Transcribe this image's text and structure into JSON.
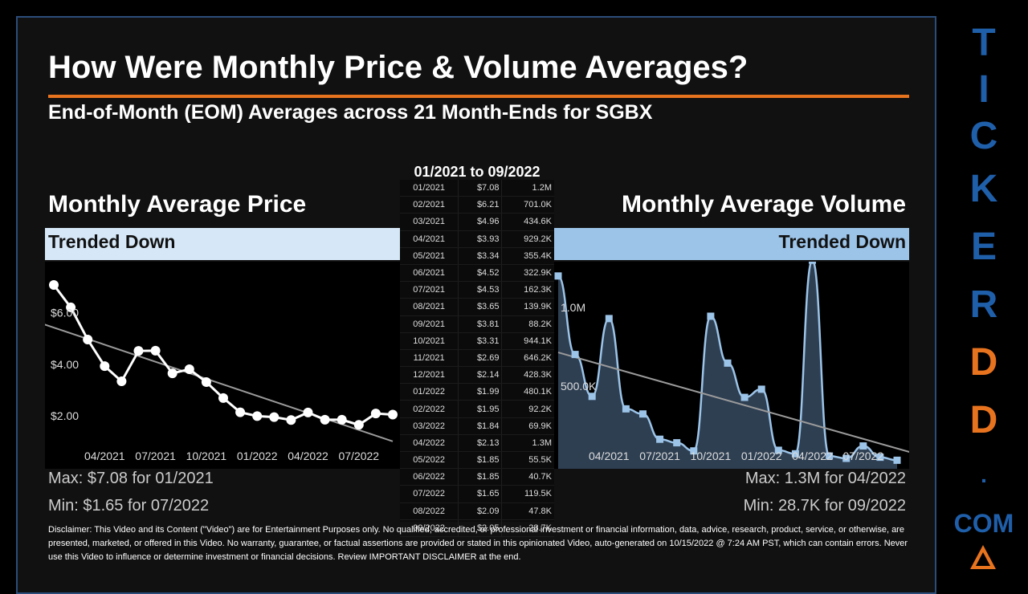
{
  "header": {
    "title": "How Were Monthly Price & Volume Averages?",
    "subtitle": "End-of-Month (EOM) Averages across 21 Month-Ends for SGBX",
    "range": "01/2021 to 09/2022"
  },
  "price_panel": {
    "title": "Monthly Average Price",
    "trend": "Trended Down",
    "max": "Max: $7.08 for 01/2021",
    "min": "Min: $1.65 for 07/2022",
    "y_ticks": [
      "$6.00",
      "$4.00",
      "$2.00"
    ],
    "x_ticks": [
      "04/2021",
      "07/2021",
      "10/2021",
      "01/2022",
      "04/2022",
      "07/2022"
    ]
  },
  "volume_panel": {
    "title": "Monthly Average Volume",
    "trend": "Trended Down",
    "max": "Max: 1.3M for 04/2022",
    "min": "Min: 28.7K for 09/2022",
    "y_ticks": [
      "1.0M",
      "500.0K"
    ],
    "x_ticks": [
      "04/2021",
      "07/2021",
      "10/2021",
      "01/2022",
      "04/2022",
      "07/2022"
    ]
  },
  "table": {
    "rows": [
      [
        "01/2021",
        "$7.08",
        "1.2M"
      ],
      [
        "02/2021",
        "$6.21",
        "701.0K"
      ],
      [
        "03/2021",
        "$4.96",
        "434.6K"
      ],
      [
        "04/2021",
        "$3.93",
        "929.2K"
      ],
      [
        "05/2021",
        "$3.34",
        "355.4K"
      ],
      [
        "06/2021",
        "$4.52",
        "322.9K"
      ],
      [
        "07/2021",
        "$4.53",
        "162.3K"
      ],
      [
        "08/2021",
        "$3.65",
        "139.9K"
      ],
      [
        "09/2021",
        "$3.81",
        "88.2K"
      ],
      [
        "10/2021",
        "$3.31",
        "944.1K"
      ],
      [
        "11/2021",
        "$2.69",
        "646.2K"
      ],
      [
        "12/2021",
        "$2.14",
        "428.3K"
      ],
      [
        "01/2022",
        "$1.99",
        "480.1K"
      ],
      [
        "02/2022",
        "$1.95",
        "92.2K"
      ],
      [
        "03/2022",
        "$1.84",
        "69.9K"
      ],
      [
        "04/2022",
        "$2.13",
        "1.3M"
      ],
      [
        "05/2022",
        "$1.85",
        "55.5K"
      ],
      [
        "06/2022",
        "$1.85",
        "40.7K"
      ],
      [
        "07/2022",
        "$1.65",
        "119.5K"
      ],
      [
        "08/2022",
        "$2.09",
        "47.8K"
      ],
      [
        "09/2022",
        "$2.05",
        "28.7K"
      ]
    ]
  },
  "disclaimer": "Disclaimer: This Video and its Content (\"Video\") are for Entertainment Purposes only. No qualified, accredited, or professional investment or financial information, data, advice, research, product, service, or otherwise, are presented, marketed, or offered in this Video. No warranty, guarantee, or factual assertions are provided or stated in this opinionated Video, auto-generated on 10/15/2022 @ 7:24 AM PST, which can contain errors. Never use this Video to influence or determine investment or financial decisions. Review IMPORTANT DISCLAIMER at the end.",
  "brand": {
    "letters": [
      "T",
      "I",
      "C",
      "K",
      "E",
      "R",
      "D",
      "D",
      "."
    ],
    "letter_colors": [
      "#1f5faa",
      "#1f5faa",
      "#1f5faa",
      "#1f5faa",
      "#1f5faa",
      "#1f5faa",
      "#e8731f",
      "#e8731f",
      "#1f5faa"
    ],
    "com": "COM",
    "logo_icon": "warning-triangle-icon"
  },
  "colors": {
    "accent_orange": "#e8731f",
    "brand_blue": "#1f5faa",
    "price_band": "#d6e8f7",
    "volume_band": "#9cc4e8",
    "volume_fill": "#2e3f52",
    "volume_line": "#9cc4e8"
  },
  "chart_data": [
    {
      "type": "line",
      "x": [
        "01/2021",
        "02/2021",
        "03/2021",
        "04/2021",
        "05/2021",
        "06/2021",
        "07/2021",
        "08/2021",
        "09/2021",
        "10/2021",
        "11/2021",
        "12/2021",
        "01/2022",
        "02/2022",
        "03/2022",
        "04/2022",
        "05/2022",
        "06/2022",
        "07/2022",
        "08/2022",
        "09/2022"
      ],
      "series": [
        {
          "values": [
            7.08,
            6.21,
            4.96,
            3.93,
            3.34,
            4.52,
            4.53,
            3.65,
            3.81,
            3.31,
            2.69,
            2.14,
            1.99,
            1.95,
            1.84,
            2.13,
            1.85,
            1.85,
            1.65,
            2.09,
            2.05
          ]
        }
      ],
      "trendline": true,
      "title": "Monthly Average Price",
      "ylim": [
        1.0,
        7.5
      ],
      "y_ticks": [
        6.0,
        4.0,
        2.0
      ]
    },
    {
      "type": "area",
      "x": [
        "01/2021",
        "02/2021",
        "03/2021",
        "04/2021",
        "05/2021",
        "06/2021",
        "07/2021",
        "08/2021",
        "09/2021",
        "10/2021",
        "11/2021",
        "12/2021",
        "01/2022",
        "02/2022",
        "03/2022",
        "04/2022",
        "05/2022",
        "06/2022",
        "07/2022",
        "08/2022",
        "09/2022"
      ],
      "series": [
        {
          "values": [
            1200000,
            701000,
            434600,
            929200,
            355400,
            322900,
            162300,
            139900,
            88200,
            944100,
            646200,
            428300,
            480100,
            92200,
            69900,
            1300000,
            55500,
            40700,
            119500,
            47800,
            28700
          ]
        }
      ],
      "trendline": true,
      "title": "Monthly Average Volume",
      "ylim": [
        0,
        1350000
      ],
      "y_ticks": [
        1000000,
        500000
      ]
    }
  ]
}
